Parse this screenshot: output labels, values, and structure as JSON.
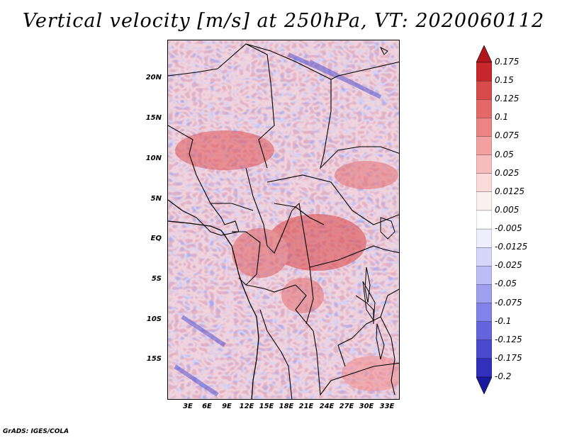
{
  "title": "Vertical velocity [m/s] at 250hPa, VT: 2020060112",
  "credit": "GrADS: IGES/COLA",
  "lat_labels": [
    "20N",
    "15N",
    "10N",
    "5N",
    "EQ",
    "5S",
    "10S",
    "15S"
  ],
  "lon_labels": [
    "3E",
    "6E",
    "9E",
    "12E",
    "15E",
    "18E",
    "21E",
    "24E",
    "27E",
    "30E",
    "33E"
  ],
  "colorbar": {
    "labels": [
      "0.175",
      "0.15",
      "0.125",
      "0.1",
      "0.075",
      "0.05",
      "0.025",
      "0.0125",
      "0.005",
      "-0.005",
      "-0.0125",
      "-0.025",
      "-0.05",
      "-0.075",
      "-0.1",
      "-0.125",
      "-0.175",
      "-0.2"
    ],
    "colors": [
      "#b0161c",
      "#c8272b",
      "#d94a4a",
      "#e56868",
      "#ec8484",
      "#f2a0a0",
      "#f7bdbd",
      "#fbdada",
      "#fdf0f0",
      "#ffffff",
      "#eeeeff",
      "#d6d6fb",
      "#bcbcf6",
      "#9f9ff0",
      "#8282e8",
      "#6464dc",
      "#4a4acf",
      "#3030bb",
      "#1a1aa0"
    ]
  }
}
